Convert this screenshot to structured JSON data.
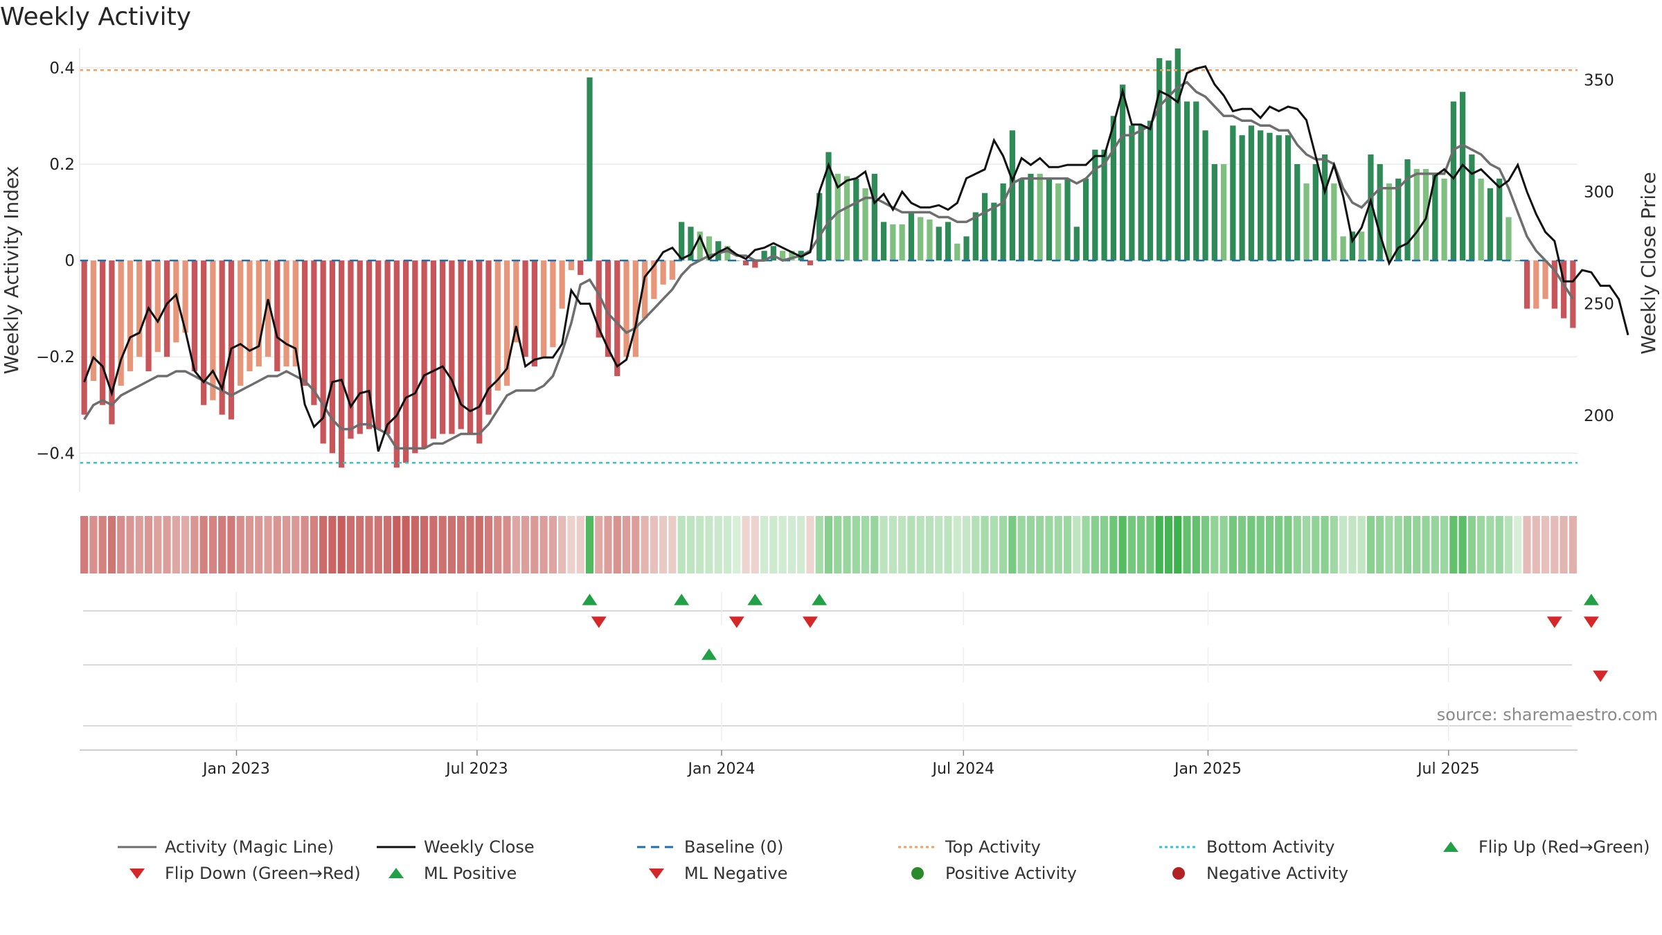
{
  "title": "Weekly Activity",
  "source_note": "source: sharemaestro.com",
  "colors": {
    "green_strong": "#2e8b57",
    "green_light": "#7fbf7f",
    "red_strong": "#c8555a",
    "red_light": "#e8967a",
    "magic_line": "#6e6e6e",
    "close_line": "#111111",
    "baseline": "#1f6fb4",
    "top": "#f0a060",
    "bottom": "#2ec4d0",
    "flip_up": "#22a046",
    "flip_down": "#d62728"
  },
  "chart_data": {
    "type": "bar",
    "ylabel_left": "Weekly Activity Index",
    "ylabel_right": "Weekly Close Price",
    "left_ticks": [
      0.4,
      0.2,
      0,
      -0.2,
      -0.4
    ],
    "left_tick_labels": [
      "0.4",
      "0.2",
      "0",
      "−0.2",
      "−0.4"
    ],
    "right_ticks": [
      350,
      300,
      250,
      200
    ],
    "right_tick_labels": [
      "350",
      "300",
      "250",
      "200"
    ],
    "ylim_left": [
      -0.48,
      0.44
    ],
    "ylim_right": [
      166,
      364
    ],
    "x_tick_labels": [
      "Jan 2023",
      "Jul 2023",
      "Jan 2024",
      "Jul 2024",
      "Jan 2025",
      "Jul 2025"
    ],
    "x_ticks": [
      "2023-01",
      "2023-07",
      "2024-01",
      "2024-07",
      "2025-01",
      "2025-07"
    ],
    "x_range": [
      "2022-09-05",
      "2025-10-06"
    ],
    "top_activity": 0.395,
    "bottom_activity": -0.42,
    "baseline": 0,
    "weekly_activity": [
      -0.32,
      -0.25,
      -0.3,
      -0.34,
      -0.26,
      -0.23,
      -0.2,
      -0.23,
      -0.19,
      -0.2,
      -0.17,
      -0.15,
      -0.23,
      -0.3,
      -0.29,
      -0.32,
      -0.33,
      -0.26,
      -0.23,
      -0.22,
      -0.2,
      -0.23,
      -0.22,
      -0.22,
      -0.26,
      -0.3,
      -0.38,
      -0.4,
      -0.43,
      -0.37,
      -0.36,
      -0.35,
      -0.35,
      -0.36,
      -0.43,
      -0.42,
      -0.4,
      -0.39,
      -0.37,
      -0.36,
      -0.36,
      -0.35,
      -0.36,
      -0.38,
      -0.32,
      -0.27,
      -0.26,
      -0.17,
      -0.2,
      -0.22,
      -0.2,
      -0.18,
      -0.1,
      -0.02,
      -0.03,
      0.38,
      -0.16,
      -0.2,
      -0.24,
      -0.2,
      -0.2,
      -0.12,
      -0.08,
      -0.05,
      -0.04,
      0.08,
      0.07,
      0.06,
      0.05,
      0.04,
      0.03,
      0.0,
      -0.01,
      -0.015,
      0.02,
      0.03,
      0.02,
      0.02,
      0.02,
      -0.01,
      0.14,
      0.225,
      0.18,
      0.175,
      0.17,
      0.15,
      0.18,
      0.08,
      0.075,
      0.075,
      0.1,
      0.09,
      0.085,
      0.07,
      0.08,
      0.035,
      0.05,
      0.1,
      0.14,
      0.12,
      0.16,
      0.27,
      0.17,
      0.18,
      0.18,
      0.17,
      0.16,
      0.17,
      0.07,
      0.17,
      0.23,
      0.23,
      0.3,
      0.365,
      0.28,
      0.28,
      0.29,
      0.42,
      0.415,
      0.44,
      0.33,
      0.33,
      0.27,
      0.2,
      0.2,
      0.28,
      0.26,
      0.28,
      0.27,
      0.265,
      0.26,
      0.26,
      0.2,
      0.16,
      0.2,
      0.22,
      0.16,
      0.05,
      0.06,
      0.06,
      0.22,
      0.2,
      0.16,
      0.17,
      0.21,
      0.19,
      0.19,
      0.18,
      0.17,
      0.33,
      0.35,
      0.22,
      0.17,
      0.15,
      0.17,
      0.09,
      0.0,
      -0.1,
      -0.1,
      -0.08,
      -0.1,
      -0.12,
      -0.14
    ],
    "magic_line": [
      -0.33,
      -0.3,
      -0.29,
      -0.3,
      -0.28,
      -0.27,
      -0.26,
      -0.25,
      -0.24,
      -0.24,
      -0.23,
      -0.23,
      -0.24,
      -0.25,
      -0.26,
      -0.27,
      -0.28,
      -0.27,
      -0.26,
      -0.25,
      -0.24,
      -0.24,
      -0.23,
      -0.24,
      -0.25,
      -0.27,
      -0.3,
      -0.33,
      -0.35,
      -0.35,
      -0.34,
      -0.34,
      -0.35,
      -0.36,
      -0.39,
      -0.39,
      -0.39,
      -0.39,
      -0.38,
      -0.38,
      -0.37,
      -0.36,
      -0.36,
      -0.36,
      -0.34,
      -0.31,
      -0.28,
      -0.27,
      -0.27,
      -0.27,
      -0.26,
      -0.24,
      -0.19,
      -0.13,
      -0.05,
      -0.04,
      -0.07,
      -0.11,
      -0.13,
      -0.15,
      -0.14,
      -0.12,
      -0.1,
      -0.08,
      -0.06,
      -0.03,
      -0.01,
      0.0,
      0.01,
      0.015,
      0.02,
      0.01,
      0.01,
      0.0,
      0.0,
      0.01,
      0.0,
      0.005,
      0.01,
      0.02,
      0.05,
      0.08,
      0.1,
      0.11,
      0.12,
      0.13,
      0.13,
      0.12,
      0.11,
      0.1,
      0.1,
      0.1,
      0.1,
      0.09,
      0.09,
      0.08,
      0.08,
      0.09,
      0.1,
      0.11,
      0.12,
      0.16,
      0.17,
      0.17,
      0.17,
      0.17,
      0.17,
      0.17,
      0.16,
      0.17,
      0.19,
      0.2,
      0.23,
      0.26,
      0.26,
      0.27,
      0.28,
      0.32,
      0.34,
      0.36,
      0.37,
      0.35,
      0.34,
      0.32,
      0.3,
      0.3,
      0.29,
      0.29,
      0.28,
      0.28,
      0.27,
      0.27,
      0.24,
      0.22,
      0.21,
      0.21,
      0.2,
      0.15,
      0.12,
      0.11,
      0.13,
      0.15,
      0.15,
      0.15,
      0.17,
      0.18,
      0.18,
      0.18,
      0.18,
      0.23,
      0.24,
      0.23,
      0.22,
      0.2,
      0.19,
      0.15,
      0.1,
      0.05,
      0.02,
      0.0,
      -0.02,
      -0.05,
      -0.08
    ],
    "weekly_close": [
      215,
      226,
      222,
      210,
      225,
      235,
      237,
      248,
      242,
      250,
      254,
      238,
      220,
      215,
      220,
      212,
      230,
      232,
      229,
      231,
      252,
      235,
      232,
      230,
      205,
      195,
      199,
      215,
      216,
      204,
      210,
      211,
      184,
      196,
      200,
      208,
      210,
      218,
      220,
      222,
      216,
      205,
      202,
      204,
      212,
      216,
      221,
      240,
      222,
      225,
      226,
      226,
      232,
      256,
      250,
      250,
      239,
      230,
      222,
      225,
      240,
      262,
      267,
      273,
      275,
      270,
      272,
      280,
      270,
      273,
      275,
      272,
      270,
      274,
      275,
      277,
      275,
      273,
      271,
      273,
      300,
      312,
      302,
      305,
      306,
      309,
      295,
      299,
      292,
      300,
      295,
      293,
      293,
      294,
      292,
      295,
      306,
      308,
      310,
      323,
      316,
      305,
      315,
      312,
      315,
      311,
      311,
      312,
      312,
      312,
      316,
      316,
      330,
      345,
      330,
      330,
      328,
      345,
      343,
      340,
      353,
      355,
      356,
      348,
      343,
      336,
      337,
      337,
      333,
      338,
      336,
      338,
      337,
      332,
      316,
      300,
      312,
      298,
      278,
      284,
      296,
      281,
      268,
      275,
      277,
      282,
      288,
      307,
      310,
      306,
      312,
      308,
      310,
      306,
      302,
      305,
      312,
      300,
      290,
      282,
      278,
      260,
      260,
      265,
      264,
      258,
      258,
      252,
      236
    ],
    "heat_strip": [
      -0.32,
      -0.25,
      -0.3,
      -0.34,
      -0.26,
      -0.23,
      -0.2,
      -0.23,
      -0.19,
      -0.2,
      -0.17,
      -0.15,
      -0.23,
      -0.3,
      -0.29,
      -0.32,
      -0.33,
      -0.26,
      -0.23,
      -0.22,
      -0.2,
      -0.23,
      -0.22,
      -0.22,
      -0.26,
      -0.3,
      -0.38,
      -0.4,
      -0.43,
      -0.37,
      -0.36,
      -0.35,
      -0.35,
      -0.36,
      -0.43,
      -0.42,
      -0.4,
      -0.39,
      -0.37,
      -0.36,
      -0.36,
      -0.35,
      -0.36,
      -0.38,
      -0.32,
      -0.27,
      -0.26,
      -0.17,
      -0.2,
      -0.22,
      -0.2,
      -0.18,
      -0.1,
      -0.02,
      -0.03,
      0.38,
      -0.16,
      -0.2,
      -0.24,
      -0.2,
      -0.2,
      -0.12,
      -0.08,
      -0.05,
      -0.04,
      0.08,
      0.07,
      0.06,
      0.05,
      0.04,
      0.03,
      0.0,
      -0.01,
      -0.015,
      0.02,
      0.03,
      0.02,
      0.02,
      0.02,
      -0.01,
      0.14,
      0.225,
      0.18,
      0.175,
      0.17,
      0.15,
      0.18,
      0.08,
      0.075,
      0.075,
      0.1,
      0.09,
      0.085,
      0.07,
      0.08,
      0.035,
      0.05,
      0.1,
      0.14,
      0.12,
      0.16,
      0.27,
      0.17,
      0.18,
      0.18,
      0.17,
      0.16,
      0.17,
      0.07,
      0.17,
      0.23,
      0.23,
      0.3,
      0.365,
      0.28,
      0.28,
      0.29,
      0.42,
      0.415,
      0.44,
      0.33,
      0.33,
      0.27,
      0.2,
      0.2,
      0.28,
      0.26,
      0.28,
      0.27,
      0.265,
      0.26,
      0.26,
      0.2,
      0.16,
      0.2,
      0.22,
      0.16,
      0.05,
      0.06,
      0.06,
      0.22,
      0.2,
      0.16,
      0.17,
      0.21,
      0.19,
      0.19,
      0.18,
      0.17,
      0.33,
      0.35,
      0.22,
      0.17,
      0.15,
      0.17,
      0.09,
      0.0,
      -0.1,
      -0.1,
      -0.08,
      -0.1,
      -0.12,
      -0.14
    ],
    "flip_up_weeks": [
      55,
      65,
      73,
      80,
      164
    ],
    "flip_down_weeks": [
      56,
      71,
      79,
      160,
      164
    ],
    "ml_positive_weeks": [
      68
    ],
    "ml_negative_weeks": [
      165
    ],
    "legend": [
      {
        "label": "Activity (Magic Line)",
        "symbol": "line-grey"
      },
      {
        "label": "Weekly Close",
        "symbol": "line-black"
      },
      {
        "label": "Baseline (0)",
        "symbol": "dash-blue"
      },
      {
        "label": "Top Activity",
        "symbol": "dot-orange"
      },
      {
        "label": "Bottom Activity",
        "symbol": "dot-cyan"
      },
      {
        "label": "Flip Up (Red→Green)",
        "symbol": "tri-up-green"
      },
      {
        "label": "Flip Down (Green→Red)",
        "symbol": "tri-down-red"
      },
      {
        "label": "ML Positive",
        "symbol": "tri-up-green"
      },
      {
        "label": "ML Negative",
        "symbol": "tri-down-red"
      },
      {
        "label": "Positive Activity",
        "symbol": "circle-green"
      },
      {
        "label": "Negative Activity",
        "symbol": "circle-red"
      }
    ]
  }
}
